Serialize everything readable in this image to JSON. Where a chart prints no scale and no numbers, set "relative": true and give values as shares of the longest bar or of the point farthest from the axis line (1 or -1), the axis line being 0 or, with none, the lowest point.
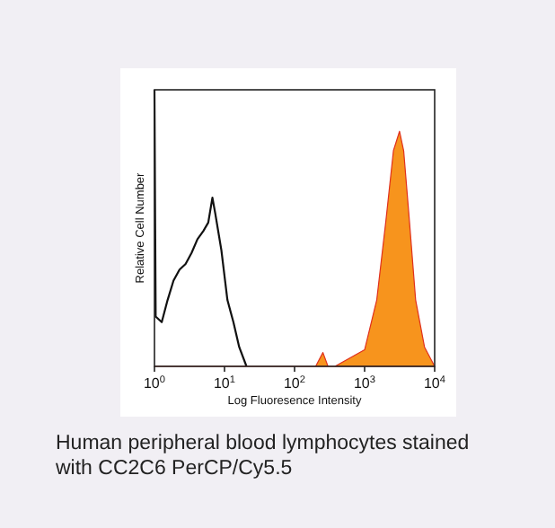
{
  "chart_data": {
    "type": "line",
    "relative": true,
    "log": "x",
    "xlabel": "Log Fluoresence Intensity",
    "ylabel": "Relative Cell Number",
    "xlim": [
      1,
      10000
    ],
    "xticks": [
      {
        "value": 1,
        "label": "10$^{0}$"
      },
      {
        "value": 10,
        "label": "10$^{1}$"
      },
      {
        "value": 100,
        "label": "10$^{2}$"
      },
      {
        "value": 1000,
        "label": "10$^{3}$"
      },
      {
        "value": 10000,
        "label": "10$^{4}$"
      }
    ],
    "grid": false,
    "marker": "none",
    "line_style": "solid",
    "series": [
      {
        "color": "#111111",
        "x": [
          1,
          1.04,
          1.27,
          1.54,
          1.87,
          2.28,
          2.78,
          3.38,
          4.11,
          5.0,
          5.86,
          6.72,
          7.41,
          9.02,
          11.0,
          13.4,
          16.2,
          20.6
        ],
        "values": [
          1,
          0.18,
          0.16,
          0.24,
          0.31,
          0.35,
          0.37,
          0.41,
          0.46,
          0.49,
          0.52,
          0.61,
          0.55,
          0.42,
          0.24,
          0.16,
          0.07,
          0
        ]
      },
      {
        "type": "area",
        "color": "#f7941d",
        "x": [
          1,
          200,
          254,
          300,
          377,
          1000,
          1490,
          2000,
          2580,
          3150,
          3610,
          4380,
          5350,
          7160,
          10000
        ],
        "values": [
          0,
          0,
          0.05,
          0,
          0,
          0.06,
          0.24,
          0.52,
          0.78,
          0.85,
          0.78,
          0.52,
          0.24,
          0.07,
          0
        ]
      }
    ],
    "annotations": [
      "Human peripheral blood lymphocytes stained with CC2C6 PerCP/Cy5.5"
    ]
  }
}
